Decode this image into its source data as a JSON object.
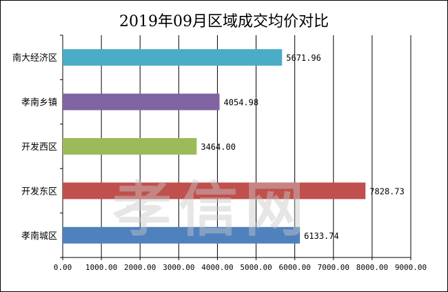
{
  "chart_data": {
    "type": "bar",
    "orientation": "horizontal",
    "title": "2019年09月区域成交均价对比",
    "categories": [
      "南大经济区",
      "孝南乡镇",
      "开发西区",
      "开发东区",
      "孝南城区"
    ],
    "values": [
      5671.96,
      4054.98,
      3464.0,
      7828.73,
      6133.74
    ],
    "value_labels": [
      "5671.96",
      "4054.98",
      "3464.00",
      "7828.73",
      "6133.74"
    ],
    "colors": [
      "#4bacc6",
      "#8064a2",
      "#9bbb59",
      "#c0504d",
      "#4f81bd"
    ],
    "xlim": [
      0,
      9000
    ],
    "xticks": [
      "0.00",
      "1000.00",
      "2000.00",
      "3000.00",
      "4000.00",
      "5000.00",
      "6000.00",
      "7000.00",
      "8000.00",
      "9000.00"
    ],
    "xlabel": "",
    "ylabel": "",
    "grid": "vertical",
    "legend": "none"
  },
  "watermark": "孝信网"
}
